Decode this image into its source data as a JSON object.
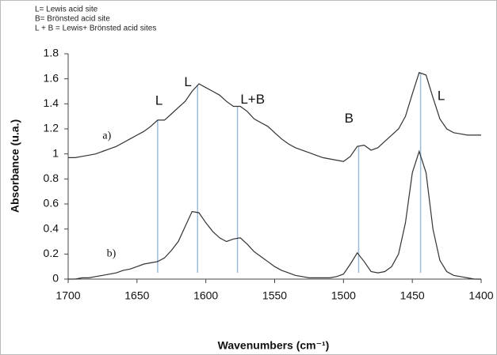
{
  "chart_data": {
    "type": "line",
    "notes": [
      "L= Lewis acid site",
      "B=  Brönsted acid site",
      "L + B = Lewis+ Brönsted acid sites"
    ],
    "x_label": "Wavenumbers (cm⁻¹)",
    "y_label": "Absorbance  (u.a.)",
    "x": [
      1700,
      1695,
      1690,
      1685,
      1680,
      1675,
      1670,
      1665,
      1660,
      1655,
      1650,
      1645,
      1640,
      1635,
      1630,
      1625,
      1620,
      1615,
      1610,
      1605,
      1600,
      1595,
      1590,
      1585,
      1580,
      1575,
      1570,
      1565,
      1560,
      1555,
      1550,
      1545,
      1540,
      1535,
      1530,
      1525,
      1520,
      1515,
      1510,
      1505,
      1500,
      1495,
      1490,
      1485,
      1480,
      1475,
      1470,
      1465,
      1460,
      1455,
      1450,
      1445,
      1440,
      1435,
      1430,
      1425,
      1420,
      1415,
      1410,
      1405,
      1400
    ],
    "series": [
      {
        "name": "a)",
        "color": "#333333",
        "values": [
          0.97,
          0.97,
          0.98,
          0.99,
          1.0,
          1.02,
          1.04,
          1.06,
          1.09,
          1.12,
          1.15,
          1.18,
          1.22,
          1.27,
          1.27,
          1.32,
          1.37,
          1.42,
          1.5,
          1.56,
          1.53,
          1.5,
          1.47,
          1.42,
          1.38,
          1.38,
          1.34,
          1.28,
          1.25,
          1.22,
          1.17,
          1.12,
          1.08,
          1.05,
          1.03,
          1.01,
          0.99,
          0.97,
          0.96,
          0.95,
          0.94,
          0.98,
          1.06,
          1.07,
          1.03,
          1.05,
          1.1,
          1.15,
          1.2,
          1.3,
          1.48,
          1.65,
          1.63,
          1.45,
          1.28,
          1.2,
          1.17,
          1.16,
          1.15,
          1.15,
          1.15
        ],
        "label_x": 1675,
        "label_y": 1.14
      },
      {
        "name": "b)",
        "color": "#333333",
        "values": [
          0,
          0,
          0.01,
          0.01,
          0.02,
          0.03,
          0.04,
          0.05,
          0.07,
          0.08,
          0.1,
          0.12,
          0.13,
          0.14,
          0.17,
          0.23,
          0.3,
          0.42,
          0.54,
          0.53,
          0.45,
          0.38,
          0.33,
          0.3,
          0.32,
          0.33,
          0.28,
          0.22,
          0.18,
          0.14,
          0.1,
          0.07,
          0.05,
          0.03,
          0.02,
          0.01,
          0.01,
          0.01,
          0.01,
          0.02,
          0.04,
          0.12,
          0.21,
          0.14,
          0.06,
          0.05,
          0.06,
          0.1,
          0.2,
          0.45,
          0.85,
          1.02,
          0.85,
          0.4,
          0.15,
          0.06,
          0.03,
          0.02,
          0.01,
          0.0,
          0
        ],
        "label_x": 1672,
        "label_y": 0.2
      }
    ],
    "annotations": [
      {
        "text": "L",
        "x": 1634,
        "y": 1.42
      },
      {
        "text": "L",
        "x": 1613,
        "y": 1.57
      },
      {
        "text": "L+B",
        "x": 1566,
        "y": 1.43
      },
      {
        "text": "B",
        "x": 1496,
        "y": 1.28
      },
      {
        "text": "L",
        "x": 1429,
        "y": 1.46
      }
    ],
    "peak_lines": [
      1635,
      1606,
      1577,
      1489,
      1444
    ],
    "peak_line_color": "#9bbbd9",
    "xlim": [
      1700,
      1400
    ],
    "xticks": [
      1700,
      1650,
      1600,
      1550,
      1500,
      1450,
      1400
    ],
    "ylim": [
      0,
      1.8
    ],
    "yticks": [
      0,
      0.2,
      0.4,
      0.6,
      0.8,
      1,
      1.2,
      1.4,
      1.6,
      1.8
    ]
  }
}
